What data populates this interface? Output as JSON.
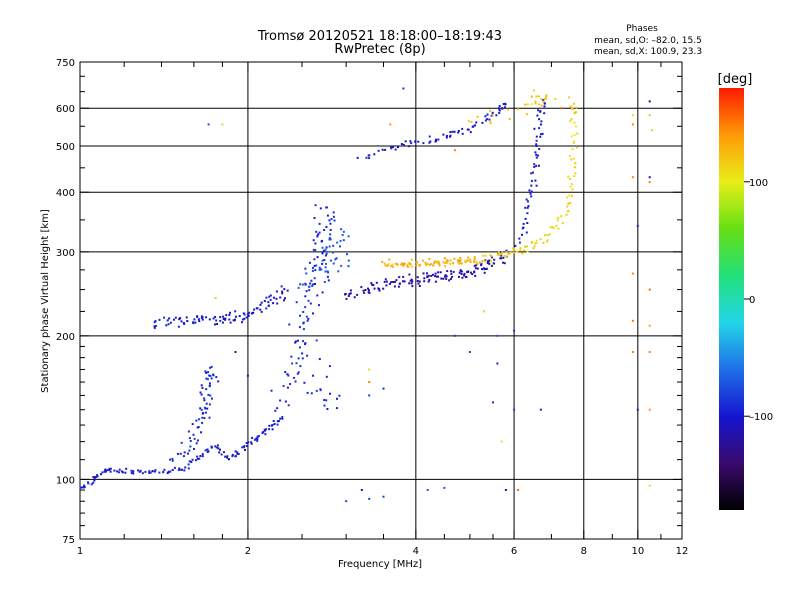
{
  "header": {
    "title_line1": "Tromsø 20120521  18:18:00–18:19:43",
    "title_line2": "RwPretec (8p)",
    "phase_heading": "Phases",
    "phase_stat_o": "mean, sd,O: –82.0, 15.5",
    "phase_stat_x": "mean, sd,X: 100.9, 23.3"
  },
  "chart_data": {
    "type": "scatter",
    "xlabel": "Frequency [MHz]",
    "ylabel": "Stationary phase Virtual Height [km]",
    "x_scale": "log",
    "y_scale": "log",
    "xlim": [
      1,
      12
    ],
    "ylim": [
      75,
      750
    ],
    "grid": true,
    "x_ticks": [
      1,
      2,
      4,
      6,
      8,
      10,
      12
    ],
    "x_tick_labels": [
      "1",
      "2",
      "4",
      "6",
      "8",
      "10",
      "12"
    ],
    "x_minor_ticks": [
      1.2,
      1.4,
      1.6,
      1.8,
      2.5,
      3,
      3.5,
      4.5,
      5,
      5.5,
      7,
      9,
      11
    ],
    "x_grid_lines": [
      2,
      4,
      6,
      8,
      10
    ],
    "y_ticks": [
      75,
      100,
      200,
      300,
      400,
      500,
      600,
      750
    ],
    "y_tick_labels": [
      "75",
      "100",
      "200",
      "300",
      "400",
      "500",
      "600",
      "750"
    ],
    "y_minor_ticks": [
      80,
      85,
      90,
      95,
      110,
      120,
      130,
      140,
      150,
      160,
      170,
      180,
      190,
      225,
      250,
      275,
      350,
      450,
      550,
      650,
      700
    ],
    "y_grid_lines": [
      100,
      200,
      300,
      400,
      500,
      600
    ],
    "colorbar": {
      "label": "[deg]",
      "range": [
        -180,
        180
      ],
      "ticks": [
        100,
        0,
        -100
      ],
      "tick_labels": [
        "100",
        "0",
        "–100"
      ],
      "colormap": [
        "#000000",
        "#3a0a6e",
        "#1515d0",
        "#1f6fe8",
        "#22d6e8",
        "#22e07a",
        "#66e014",
        "#e8ee18",
        "#ff9a08",
        "#ff1a00"
      ]
    },
    "series": [
      {
        "phase": -95,
        "jitter": 0.012,
        "points": [
          [
            1.0,
            96
          ],
          [
            1.02,
            97
          ],
          [
            1.05,
            99
          ],
          [
            1.08,
            102
          ],
          [
            1.1,
            104
          ],
          [
            1.12,
            105
          ],
          [
            1.15,
            104
          ],
          [
            1.2,
            104
          ],
          [
            1.25,
            104
          ],
          [
            1.3,
            104
          ],
          [
            1.35,
            104
          ],
          [
            1.4,
            104
          ],
          [
            1.45,
            104
          ],
          [
            1.5,
            105
          ],
          [
            1.55,
            106
          ],
          [
            1.6,
            109
          ],
          [
            1.65,
            112
          ],
          [
            1.7,
            115
          ],
          [
            1.75,
            117
          ],
          [
            1.8,
            113
          ],
          [
            1.85,
            110
          ],
          [
            1.9,
            112
          ],
          [
            1.95,
            116
          ],
          [
            2.0,
            118
          ],
          [
            2.05,
            121
          ],
          [
            2.1,
            124
          ],
          [
            2.15,
            126
          ],
          [
            2.2,
            129
          ],
          [
            2.25,
            132
          ],
          [
            2.3,
            135
          ]
        ]
      },
      {
        "phase": -90,
        "jitter": 0.03,
        "points": [
          [
            1.48,
            110
          ],
          [
            1.52,
            114
          ],
          [
            1.56,
            118
          ],
          [
            1.6,
            122
          ],
          [
            1.62,
            128
          ],
          [
            1.65,
            135
          ],
          [
            1.67,
            142
          ],
          [
            1.68,
            150
          ],
          [
            1.7,
            158
          ],
          [
            1.72,
            165
          ],
          [
            1.74,
            172
          ],
          [
            1.72,
            162
          ],
          [
            1.68,
            140
          ],
          [
            1.66,
            130
          ]
        ]
      },
      {
        "phase": -100,
        "jitter": 0.03,
        "points": [
          [
            1.35,
            213
          ],
          [
            1.4,
            215
          ],
          [
            1.45,
            217
          ],
          [
            1.5,
            215
          ],
          [
            1.55,
            214
          ],
          [
            1.6,
            215
          ],
          [
            1.65,
            216
          ],
          [
            1.7,
            217
          ],
          [
            1.75,
            217
          ],
          [
            1.8,
            217
          ],
          [
            1.85,
            217
          ],
          [
            1.9,
            218
          ],
          [
            1.95,
            220
          ],
          [
            2.0,
            221
          ],
          [
            2.05,
            222
          ],
          [
            2.1,
            225
          ],
          [
            2.15,
            230
          ],
          [
            2.2,
            235
          ],
          [
            2.25,
            240
          ],
          [
            2.3,
            245
          ],
          [
            2.35,
            250
          ]
        ]
      },
      {
        "phase": -92,
        "jitter": 0.05,
        "points": [
          [
            2.3,
            140
          ],
          [
            2.35,
            150
          ],
          [
            2.4,
            160
          ],
          [
            2.42,
            170
          ],
          [
            2.45,
            180
          ],
          [
            2.48,
            190
          ],
          [
            2.5,
            200
          ],
          [
            2.52,
            210
          ],
          [
            2.55,
            220
          ],
          [
            2.58,
            235
          ],
          [
            2.6,
            250
          ],
          [
            2.62,
            265
          ],
          [
            2.65,
            280
          ],
          [
            2.68,
            295
          ],
          [
            2.7,
            310
          ],
          [
            2.72,
            325
          ],
          [
            2.75,
            340
          ],
          [
            2.77,
            355
          ],
          [
            2.8,
            370
          ],
          [
            2.75,
            310
          ],
          [
            2.65,
            260
          ],
          [
            2.6,
            160
          ],
          [
            2.7,
            150
          ],
          [
            2.8,
            140
          ],
          [
            2.75,
            170
          ]
        ]
      },
      {
        "phase": -72,
        "jitter": 0.05,
        "points": [
          [
            2.55,
            255
          ],
          [
            2.6,
            262
          ],
          [
            2.7,
            270
          ],
          [
            2.8,
            278
          ],
          [
            2.9,
            285
          ],
          [
            2.95,
            292
          ],
          [
            2.75,
            300
          ],
          [
            2.85,
            315
          ],
          [
            2.9,
            330
          ],
          [
            3.0,
            320
          ]
        ]
      },
      {
        "phase": -115,
        "jitter": 0.025,
        "points": [
          [
            3.0,
            240
          ],
          [
            3.1,
            244
          ],
          [
            3.2,
            248
          ],
          [
            3.3,
            250
          ],
          [
            3.4,
            253
          ],
          [
            3.5,
            255
          ],
          [
            3.6,
            257
          ],
          [
            3.7,
            258
          ],
          [
            3.8,
            260
          ],
          [
            3.9,
            261
          ],
          [
            4.0,
            262
          ],
          [
            4.1,
            263
          ],
          [
            4.2,
            264
          ],
          [
            4.3,
            265
          ],
          [
            4.4,
            266
          ],
          [
            4.5,
            267
          ],
          [
            4.6,
            268
          ],
          [
            4.7,
            269
          ],
          [
            4.8,
            270
          ],
          [
            4.9,
            271
          ],
          [
            5.0,
            272
          ],
          [
            5.1,
            274
          ],
          [
            5.2,
            276
          ],
          [
            5.3,
            279
          ],
          [
            5.4,
            282
          ],
          [
            5.5,
            286
          ],
          [
            5.6,
            290
          ],
          [
            5.7,
            294
          ],
          [
            5.8,
            297
          ]
        ]
      },
      {
        "phase": 130,
        "jitter": 0.02,
        "points": [
          [
            3.5,
            285
          ],
          [
            3.6,
            283
          ],
          [
            3.7,
            282
          ],
          [
            3.8,
            282
          ],
          [
            3.9,
            283
          ],
          [
            4.0,
            283
          ],
          [
            4.1,
            284
          ],
          [
            4.2,
            284
          ],
          [
            4.3,
            285
          ],
          [
            4.4,
            285
          ],
          [
            4.5,
            285
          ],
          [
            4.6,
            286
          ],
          [
            4.7,
            286
          ],
          [
            4.8,
            287
          ],
          [
            4.9,
            287
          ],
          [
            5.0,
            287
          ],
          [
            5.1,
            286
          ],
          [
            5.2,
            286
          ]
        ]
      },
      {
        "phase": 110,
        "jitter": 0.02,
        "points": [
          [
            5.3,
            290
          ],
          [
            5.5,
            292
          ],
          [
            5.7,
            294
          ],
          [
            5.9,
            297
          ],
          [
            6.0,
            300
          ],
          [
            6.2,
            303
          ],
          [
            6.4,
            308
          ],
          [
            6.6,
            313
          ],
          [
            6.8,
            320
          ],
          [
            7.0,
            330
          ],
          [
            7.2,
            345
          ],
          [
            7.4,
            365
          ],
          [
            7.5,
            390
          ],
          [
            7.6,
            420
          ],
          [
            7.65,
            450
          ],
          [
            7.7,
            480
          ],
          [
            7.72,
            520
          ],
          [
            7.7,
            560
          ],
          [
            7.65,
            600
          ]
        ]
      },
      {
        "phase": -100,
        "jitter": 0.02,
        "points": [
          [
            3.2,
            470
          ],
          [
            3.4,
            485
          ],
          [
            3.6,
            495
          ],
          [
            3.8,
            503
          ],
          [
            4.0,
            510
          ],
          [
            4.2,
            515
          ],
          [
            4.4,
            520
          ],
          [
            4.6,
            528
          ],
          [
            4.8,
            535
          ],
          [
            5.0,
            545
          ],
          [
            5.2,
            560
          ],
          [
            5.4,
            575
          ],
          [
            5.6,
            590
          ],
          [
            5.7,
            600
          ],
          [
            5.8,
            610
          ]
        ]
      },
      {
        "phase": -100,
        "jitter": 0.02,
        "points": [
          [
            6.1,
            310
          ],
          [
            6.2,
            335
          ],
          [
            6.3,
            360
          ],
          [
            6.4,
            385
          ],
          [
            6.45,
            410
          ],
          [
            6.5,
            440
          ],
          [
            6.55,
            470
          ],
          [
            6.6,
            500
          ],
          [
            6.65,
            530
          ],
          [
            6.7,
            560
          ],
          [
            6.72,
            590
          ],
          [
            6.75,
            620
          ]
        ]
      },
      {
        "phase": 120,
        "jitter": 0.04,
        "points": [
          [
            6.5,
            610
          ],
          [
            6.6,
            630
          ],
          [
            6.7,
            640
          ],
          [
            6.8,
            625
          ],
          [
            5.5,
            570
          ],
          [
            5.0,
            560
          ],
          [
            7.6,
            630
          ],
          [
            7.7,
            610
          ]
        ]
      },
      {
        "phase": -80,
        "jitter": 0.0,
        "points": [
          [
            3.8,
            660
          ],
          [
            1.7,
            555
          ],
          [
            2.4,
            175
          ],
          [
            3.3,
            150
          ],
          [
            3.5,
            155
          ],
          [
            4.2,
            95
          ],
          [
            4.5,
            96
          ],
          [
            3.0,
            90
          ],
          [
            3.3,
            91
          ],
          [
            3.5,
            92
          ],
          [
            5.6,
            175
          ],
          [
            5.6,
            200
          ],
          [
            6.0,
            205
          ],
          [
            6.0,
            140
          ],
          [
            5.0,
            185
          ],
          [
            4.7,
            200
          ],
          [
            5.5,
            145
          ]
        ]
      },
      {
        "phase": 150,
        "jitter": 0.0,
        "points": [
          [
            9.8,
            555
          ],
          [
            9.8,
            430
          ],
          [
            9.8,
            270
          ],
          [
            9.8,
            215
          ],
          [
            9.8,
            185
          ],
          [
            10.5,
            420
          ],
          [
            10.5,
            250
          ],
          [
            10.5,
            210
          ],
          [
            10.5,
            185
          ],
          [
            10.5,
            140
          ],
          [
            7.3,
            600
          ],
          [
            4.7,
            490
          ],
          [
            3.6,
            555
          ],
          [
            3.3,
            160
          ],
          [
            6.1,
            95
          ]
        ]
      },
      {
        "phase": 90,
        "jitter": 0.0,
        "points": [
          [
            9.8,
            580
          ],
          [
            10.5,
            580
          ],
          [
            10.6,
            540
          ],
          [
            10.5,
            97
          ],
          [
            1.75,
            240
          ],
          [
            1.8,
            555
          ],
          [
            3.3,
            170
          ],
          [
            5.3,
            225
          ],
          [
            5.7,
            120
          ]
        ]
      },
      {
        "phase": -110,
        "jitter": 0.0,
        "points": [
          [
            10.5,
            620
          ],
          [
            10.5,
            430
          ],
          [
            10.0,
            140
          ],
          [
            10.0,
            340
          ],
          [
            6.7,
            140
          ],
          [
            5.8,
            95
          ],
          [
            1.9,
            185
          ],
          [
            2.0,
            165
          ],
          [
            3.2,
            95
          ]
        ]
      }
    ]
  }
}
